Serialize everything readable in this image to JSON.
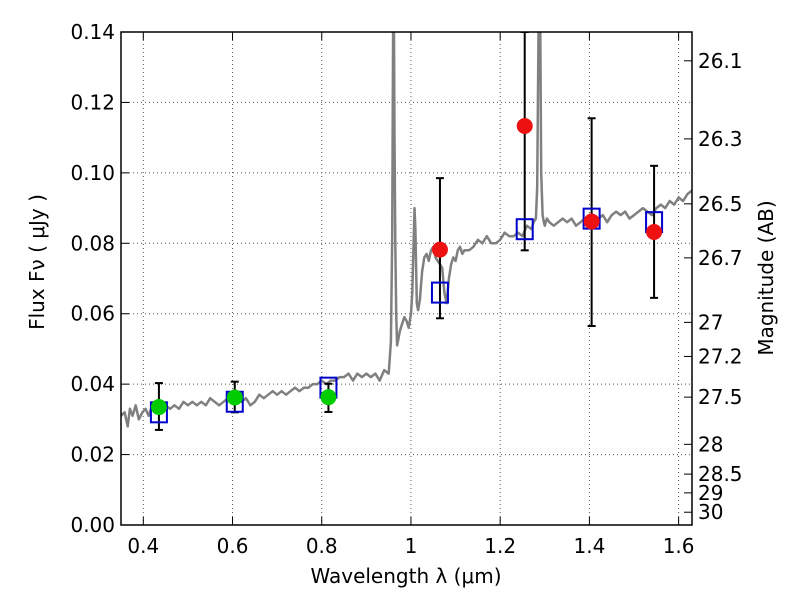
{
  "chart_data": {
    "type": "scatter",
    "xlabel": "Wavelength  λ (μm)",
    "ylabel": "Flux  Fν  ( μJy )",
    "ylabel_right": "Magnitude (AB)",
    "xlim": [
      0.35,
      1.63
    ],
    "ylim": [
      0.0,
      0.14
    ],
    "grid": true,
    "x_ticks": [
      {
        "value": 0.4,
        "label": "0.4"
      },
      {
        "value": 0.6,
        "label": "0.6"
      },
      {
        "value": 0.8,
        "label": "0.8"
      },
      {
        "value": 1.0,
        "label": "1"
      },
      {
        "value": 1.2,
        "label": "1.2"
      },
      {
        "value": 1.4,
        "label": "1.4"
      },
      {
        "value": 1.6,
        "label": "1.6"
      }
    ],
    "y_ticks": [
      {
        "value": 0.0,
        "label": "0.00"
      },
      {
        "value": 0.02,
        "label": "0.02"
      },
      {
        "value": 0.04,
        "label": "0.04"
      },
      {
        "value": 0.06,
        "label": "0.06"
      },
      {
        "value": 0.08,
        "label": "0.08"
      },
      {
        "value": 0.1,
        "label": "0.10"
      },
      {
        "value": 0.12,
        "label": "0.12"
      },
      {
        "value": 0.14,
        "label": "0.14"
      }
    ],
    "right_ticks": [
      {
        "mag": 26.1,
        "label": "26.1"
      },
      {
        "mag": 26.3,
        "label": "26.3"
      },
      {
        "mag": 26.5,
        "label": "26.5"
      },
      {
        "mag": 26.7,
        "label": "26.7"
      },
      {
        "mag": 27.0,
        "label": "27"
      },
      {
        "mag": 27.2,
        "label": "27.2"
      },
      {
        "mag": 27.5,
        "label": "27.5"
      },
      {
        "mag": 28.0,
        "label": "28"
      },
      {
        "mag": 28.5,
        "label": "28.5"
      },
      {
        "mag": 29.0,
        "label": "29"
      },
      {
        "mag": 30.0,
        "label": "30"
      }
    ],
    "colors": {
      "spectrum": "#808080",
      "model_box": "#0000cc",
      "optical_point": "#00cc00",
      "nir_point": "#ee1111",
      "errorbar": "#000000",
      "grid": "#555555"
    },
    "series": [
      {
        "kind": "line",
        "x": [
          0.35,
          0.358,
          0.365,
          0.37,
          0.376,
          0.383,
          0.39,
          0.398,
          0.405,
          0.412,
          0.42,
          0.43,
          0.44,
          0.45,
          0.46,
          0.47,
          0.48,
          0.49,
          0.5,
          0.51,
          0.52,
          0.53,
          0.54,
          0.55,
          0.56,
          0.57,
          0.58,
          0.59,
          0.6,
          0.61,
          0.62,
          0.63,
          0.64,
          0.65,
          0.66,
          0.67,
          0.68,
          0.69,
          0.7,
          0.71,
          0.72,
          0.73,
          0.74,
          0.75,
          0.76,
          0.77,
          0.78,
          0.79,
          0.8,
          0.81,
          0.82,
          0.83,
          0.84,
          0.85,
          0.86,
          0.87,
          0.88,
          0.89,
          0.9,
          0.91,
          0.92,
          0.93,
          0.94,
          0.95,
          0.955,
          0.958,
          0.96,
          0.962,
          0.963,
          0.965,
          0.967,
          0.969,
          0.972,
          0.975,
          0.98,
          0.985,
          0.99,
          0.995,
          1.0,
          1.003,
          1.006,
          1.008,
          1.01,
          1.013,
          1.016,
          1.02,
          1.025,
          1.03,
          1.035,
          1.04,
          1.045,
          1.05,
          1.055,
          1.06,
          1.065,
          1.07,
          1.075,
          1.08,
          1.085,
          1.09,
          1.095,
          1.1,
          1.105,
          1.11,
          1.115,
          1.12,
          1.125,
          1.13,
          1.14,
          1.15,
          1.16,
          1.17,
          1.18,
          1.19,
          1.2,
          1.21,
          1.22,
          1.23,
          1.24,
          1.25,
          1.26,
          1.27,
          1.275,
          1.28,
          1.283,
          1.286,
          1.288,
          1.29,
          1.292,
          1.295,
          1.298,
          1.3,
          1.302,
          1.305,
          1.31,
          1.32,
          1.33,
          1.34,
          1.35,
          1.36,
          1.37,
          1.38,
          1.39,
          1.4,
          1.41,
          1.42,
          1.43,
          1.44,
          1.45,
          1.46,
          1.47,
          1.48,
          1.49,
          1.5,
          1.51,
          1.52,
          1.53,
          1.54,
          1.55,
          1.56,
          1.57,
          1.58,
          1.59,
          1.6,
          1.61,
          1.62,
          1.63
        ],
        "y": [
          0.031,
          0.032,
          0.028,
          0.033,
          0.031,
          0.034,
          0.03,
          0.032,
          0.033,
          0.031,
          0.034,
          0.033,
          0.032,
          0.034,
          0.033,
          0.034,
          0.033,
          0.035,
          0.034,
          0.035,
          0.034,
          0.035,
          0.034,
          0.036,
          0.035,
          0.034,
          0.035,
          0.036,
          0.035,
          0.036,
          0.035,
          0.036,
          0.034,
          0.035,
          0.037,
          0.036,
          0.037,
          0.038,
          0.037,
          0.038,
          0.037,
          0.038,
          0.039,
          0.038,
          0.039,
          0.039,
          0.04,
          0.04,
          0.041,
          0.04,
          0.041,
          0.041,
          0.042,
          0.042,
          0.043,
          0.041,
          0.043,
          0.042,
          0.043,
          0.042,
          0.043,
          0.041,
          0.044,
          0.043,
          0.052,
          0.082,
          0.14,
          0.14,
          0.11,
          0.08,
          0.06,
          0.051,
          0.053,
          0.055,
          0.057,
          0.059,
          0.058,
          0.056,
          0.06,
          0.066,
          0.08,
          0.09,
          0.084,
          0.063,
          0.061,
          0.064,
          0.072,
          0.076,
          0.077,
          0.075,
          0.078,
          0.079,
          0.076,
          0.075,
          0.074,
          0.073,
          0.066,
          0.063,
          0.07,
          0.074,
          0.076,
          0.075,
          0.078,
          0.079,
          0.077,
          0.078,
          0.078,
          0.078,
          0.079,
          0.081,
          0.08,
          0.082,
          0.08,
          0.08,
          0.081,
          0.083,
          0.082,
          0.082,
          0.083,
          0.082,
          0.085,
          0.084,
          0.086,
          0.087,
          0.096,
          0.14,
          0.14,
          0.14,
          0.1,
          0.088,
          0.086,
          0.085,
          0.086,
          0.087,
          0.086,
          0.085,
          0.086,
          0.087,
          0.086,
          0.087,
          0.085,
          0.086,
          0.087,
          0.086,
          0.087,
          0.087,
          0.088,
          0.086,
          0.088,
          0.089,
          0.088,
          0.089,
          0.087,
          0.088,
          0.089,
          0.09,
          0.089,
          0.088,
          0.09,
          0.091,
          0.09,
          0.092,
          0.091,
          0.093,
          0.092,
          0.094,
          0.095
        ]
      },
      {
        "kind": "boxes",
        "x": [
          0.435,
          0.605,
          0.815,
          1.065,
          1.255,
          1.405,
          1.545
        ],
        "y": [
          0.032,
          0.035,
          0.039,
          0.066,
          0.084,
          0.087,
          0.086
        ]
      },
      {
        "kind": "points",
        "marker": "green",
        "x": [
          0.435,
          0.605,
          0.815
        ],
        "y": [
          0.0335,
          0.0362,
          0.0363
        ],
        "yerr_low": [
          0.0065,
          0.0042,
          0.0042
        ],
        "yerr_high": [
          0.0068,
          0.0045,
          0.0038
        ]
      },
      {
        "kind": "points",
        "marker": "red",
        "x": [
          1.065,
          1.255,
          1.405,
          1.545
        ],
        "y": [
          0.0782,
          0.1133,
          0.0862,
          0.0832
        ],
        "yerr_low": [
          0.0195,
          0.0353,
          0.0297,
          0.0187
        ],
        "yerr_high": [
          0.0203,
          0.0267,
          0.0293,
          0.0188
        ]
      }
    ]
  }
}
